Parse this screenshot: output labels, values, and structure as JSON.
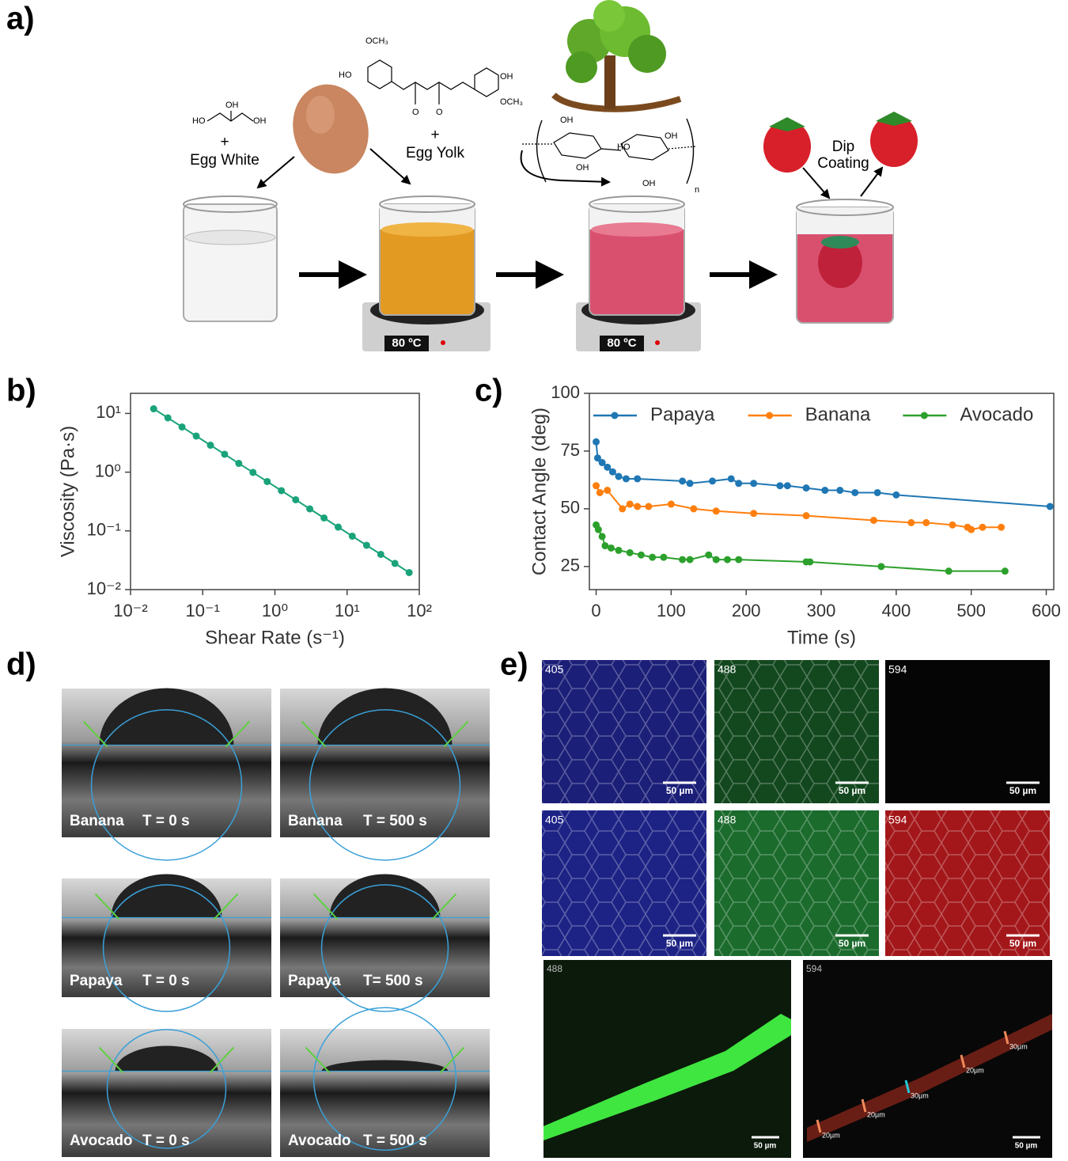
{
  "figure": {
    "panel_labels": [
      "a)",
      "b)",
      "c)",
      "d)",
      "e)"
    ],
    "scheme": {
      "glycerol_groups": [
        "OH",
        "HO",
        "OH"
      ],
      "curcumin_groups": [
        "OCH₃",
        "HO",
        "OH",
        "OCH₃",
        "O",
        "O"
      ],
      "cellulose_groups": [
        "OH",
        "OH",
        "HO",
        "OH",
        "OH",
        "n"
      ],
      "plus": "+",
      "egg_white": "Egg White",
      "egg_yolk": "Egg Yolk",
      "temperature": "80 ºC",
      "dip_coating": [
        "Dip",
        "Coating"
      ]
    },
    "contact_images": [
      {
        "fruit": "Banana",
        "time": "T = 0 s"
      },
      {
        "fruit": "Banana",
        "time": "T = 500 s"
      },
      {
        "fruit": "Papaya",
        "time": "T = 0 s"
      },
      {
        "fruit": "Papaya",
        "time": "T= 500 s"
      },
      {
        "fruit": "Avocado",
        "time": "T = 0 s"
      },
      {
        "fruit": "Avocado",
        "time": "T = 500 s"
      }
    ],
    "micrographs": {
      "grid": [
        [
          {
            "channel": "405",
            "scale": "50 µm"
          },
          {
            "channel": "488",
            "scale": "50 µm"
          },
          {
            "channel": "594",
            "scale": "50 µm"
          }
        ],
        [
          {
            "channel": "405",
            "scale": "50 µm"
          },
          {
            "channel": "488",
            "scale": "50 µm"
          },
          {
            "channel": "594",
            "scale": "50 µm"
          }
        ]
      ],
      "cross_section": [
        {
          "channel": "488",
          "scale": "50 µm"
        },
        {
          "channel": "594",
          "scale": "50 µm",
          "measurements": [
            "20µm",
            "20µm",
            "30µm",
            "20µm",
            "30µm"
          ]
        }
      ]
    }
  },
  "chart_data": [
    {
      "type": "line",
      "x_label": "Shear Rate (s⁻¹)",
      "y_label": "Viscosity (Pa·s)",
      "log_x": true,
      "log_y": true,
      "color": "#1aa37a",
      "xlim": [
        0.01,
        100
      ],
      "ylim": [
        0.01,
        22
      ],
      "xticks": [
        {
          "value": 0.01,
          "label": "10⁻²"
        },
        {
          "value": 0.1,
          "label": "10⁻¹"
        },
        {
          "value": 1,
          "label": "10⁰"
        },
        {
          "value": 10,
          "label": "10¹"
        },
        {
          "value": 100,
          "label": "10²"
        }
      ],
      "yticks": [
        {
          "value": 0.01,
          "label": "10⁻²"
        },
        {
          "value": 0.1,
          "label": "10⁻¹"
        },
        {
          "value": 1,
          "label": "10⁰"
        },
        {
          "value": 10,
          "label": "10¹"
        }
      ],
      "x": [
        0.0209,
        0.0329,
        0.0517,
        0.0813,
        0.128,
        0.201,
        0.316,
        0.497,
        0.782,
        1.23,
        1.94,
        3.04,
        4.79,
        7.53,
        11.8,
        18.6,
        29.3,
        46.0,
        72.4
      ],
      "values": [
        12.0,
        8.41,
        5.89,
        4.12,
        2.88,
        2.02,
        1.41,
        0.99,
        0.692,
        0.484,
        0.339,
        0.237,
        0.166,
        0.116,
        0.0813,
        0.0569,
        0.0398,
        0.0279,
        0.0195
      ]
    },
    {
      "type": "line",
      "x_label": "Time (s)",
      "y_label": "Contact Angle (deg)",
      "xlim": [
        -9,
        610
      ],
      "ylim": [
        15,
        100
      ],
      "xticks": [
        0,
        100,
        200,
        300,
        400,
        500,
        600
      ],
      "yticks": [
        25,
        50,
        75,
        100
      ],
      "legend": "top",
      "series": [
        {
          "name": "Papaya",
          "color": "#1f77b4",
          "x": [
            0,
            2,
            8,
            15,
            22,
            30,
            40,
            55,
            115,
            125,
            155,
            180,
            190,
            210,
            245,
            255,
            280,
            305,
            325,
            345,
            375,
            400,
            605
          ],
          "values": [
            79,
            72,
            70,
            68,
            66,
            64,
            63,
            63,
            62,
            61,
            62,
            63,
            61,
            61,
            60,
            60,
            59,
            58,
            58,
            57,
            57,
            56,
            51
          ]
        },
        {
          "name": "Banana",
          "color": "#ff7f0e",
          "x": [
            0,
            5,
            15,
            35,
            45,
            55,
            70,
            100,
            130,
            160,
            210,
            280,
            370,
            420,
            440,
            475,
            495,
            500,
            515,
            540
          ],
          "values": [
            60,
            57,
            58,
            50,
            52,
            51,
            51,
            52,
            50,
            49,
            48,
            47,
            45,
            44,
            44,
            43,
            42,
            41,
            42,
            42
          ]
        },
        {
          "name": "Avocado",
          "color": "#2ca02c",
          "x": [
            0,
            3,
            8,
            12,
            20,
            30,
            45,
            60,
            75,
            90,
            115,
            125,
            150,
            160,
            175,
            190,
            280,
            285,
            380,
            470,
            545
          ],
          "values": [
            43,
            41,
            38,
            34,
            33,
            32,
            31,
            30,
            29,
            29,
            28,
            28,
            30,
            28,
            28,
            28,
            27,
            27,
            25,
            23,
            23
          ]
        }
      ]
    }
  ]
}
